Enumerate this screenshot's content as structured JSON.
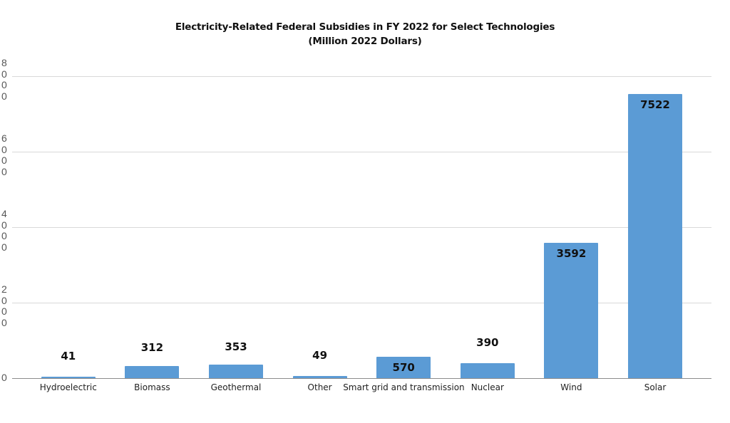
{
  "chart_data": {
    "type": "bar",
    "title": "Electricity-Related Federal Subsidies in FY 2022 for Select Technologies",
    "subtitle": "(Million 2022 Dollars)",
    "xlabel": "",
    "ylabel": "",
    "categories": [
      "Hydroelectric",
      "Biomass",
      "Geothermal",
      "Other",
      "Smart grid and transmission",
      "Nuclear",
      "Wind",
      "Solar"
    ],
    "values": [
      41,
      312,
      353,
      49,
      570,
      390,
      3592,
      7522
    ],
    "data_labels": [
      "41",
      "312",
      "353",
      "49",
      "570",
      "390",
      "3592",
      "7522"
    ],
    "ylim": [
      0,
      8000
    ],
    "yticks": [
      0,
      2000,
      4000,
      6000,
      8000
    ],
    "ytick_labels": [
      "0",
      "2000",
      "4000",
      "6000",
      "8000"
    ],
    "grid": true,
    "legend": null,
    "bar_color": "#5b9bd5"
  }
}
